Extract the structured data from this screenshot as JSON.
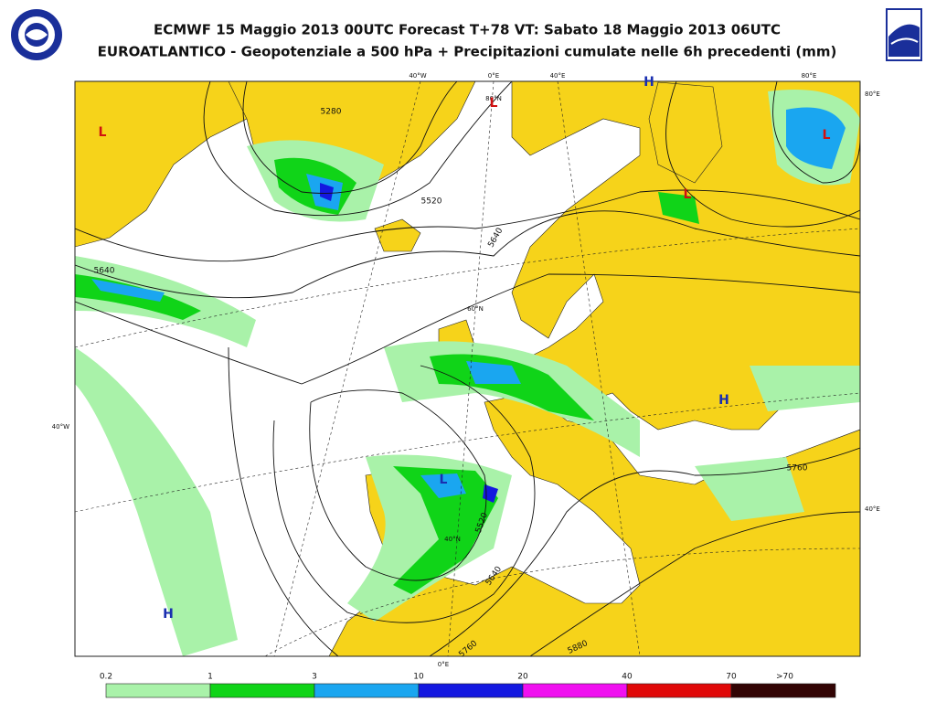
{
  "header": {
    "title": "ECMWF 15 Maggio 2013 00UTC Forecast T+78 VT: Sabato 18 Maggio 2013 06UTC",
    "subtitle": "EUROATLANTICO - Geopotenziale a 500 hPa + Precipitazioni cumulate nelle 6h precedenti (mm)"
  },
  "map": {
    "grid_labels": [
      "40°W",
      "0°E",
      "40°E",
      "80°E",
      "80°E",
      "40°W",
      "40°E",
      "0°E",
      "80°N",
      "60°N",
      "40°N"
    ],
    "contour_labels": [
      "5280",
      "5520",
      "5640",
      "5640",
      "5760",
      "5520",
      "5640",
      "5760",
      "5880"
    ],
    "centers": [
      "H",
      "L",
      "L",
      "L",
      "H",
      "H",
      "L",
      "L"
    ]
  },
  "legend": {
    "labels": [
      "0.2",
      "1",
      "3",
      "10",
      "20",
      "40",
      "70",
      ">70"
    ],
    "colors": [
      "#a9f2a9",
      "#10d418",
      "#1aa6f0",
      "#1418e0",
      "#f010f0",
      "#e00808",
      "#320404"
    ]
  }
}
